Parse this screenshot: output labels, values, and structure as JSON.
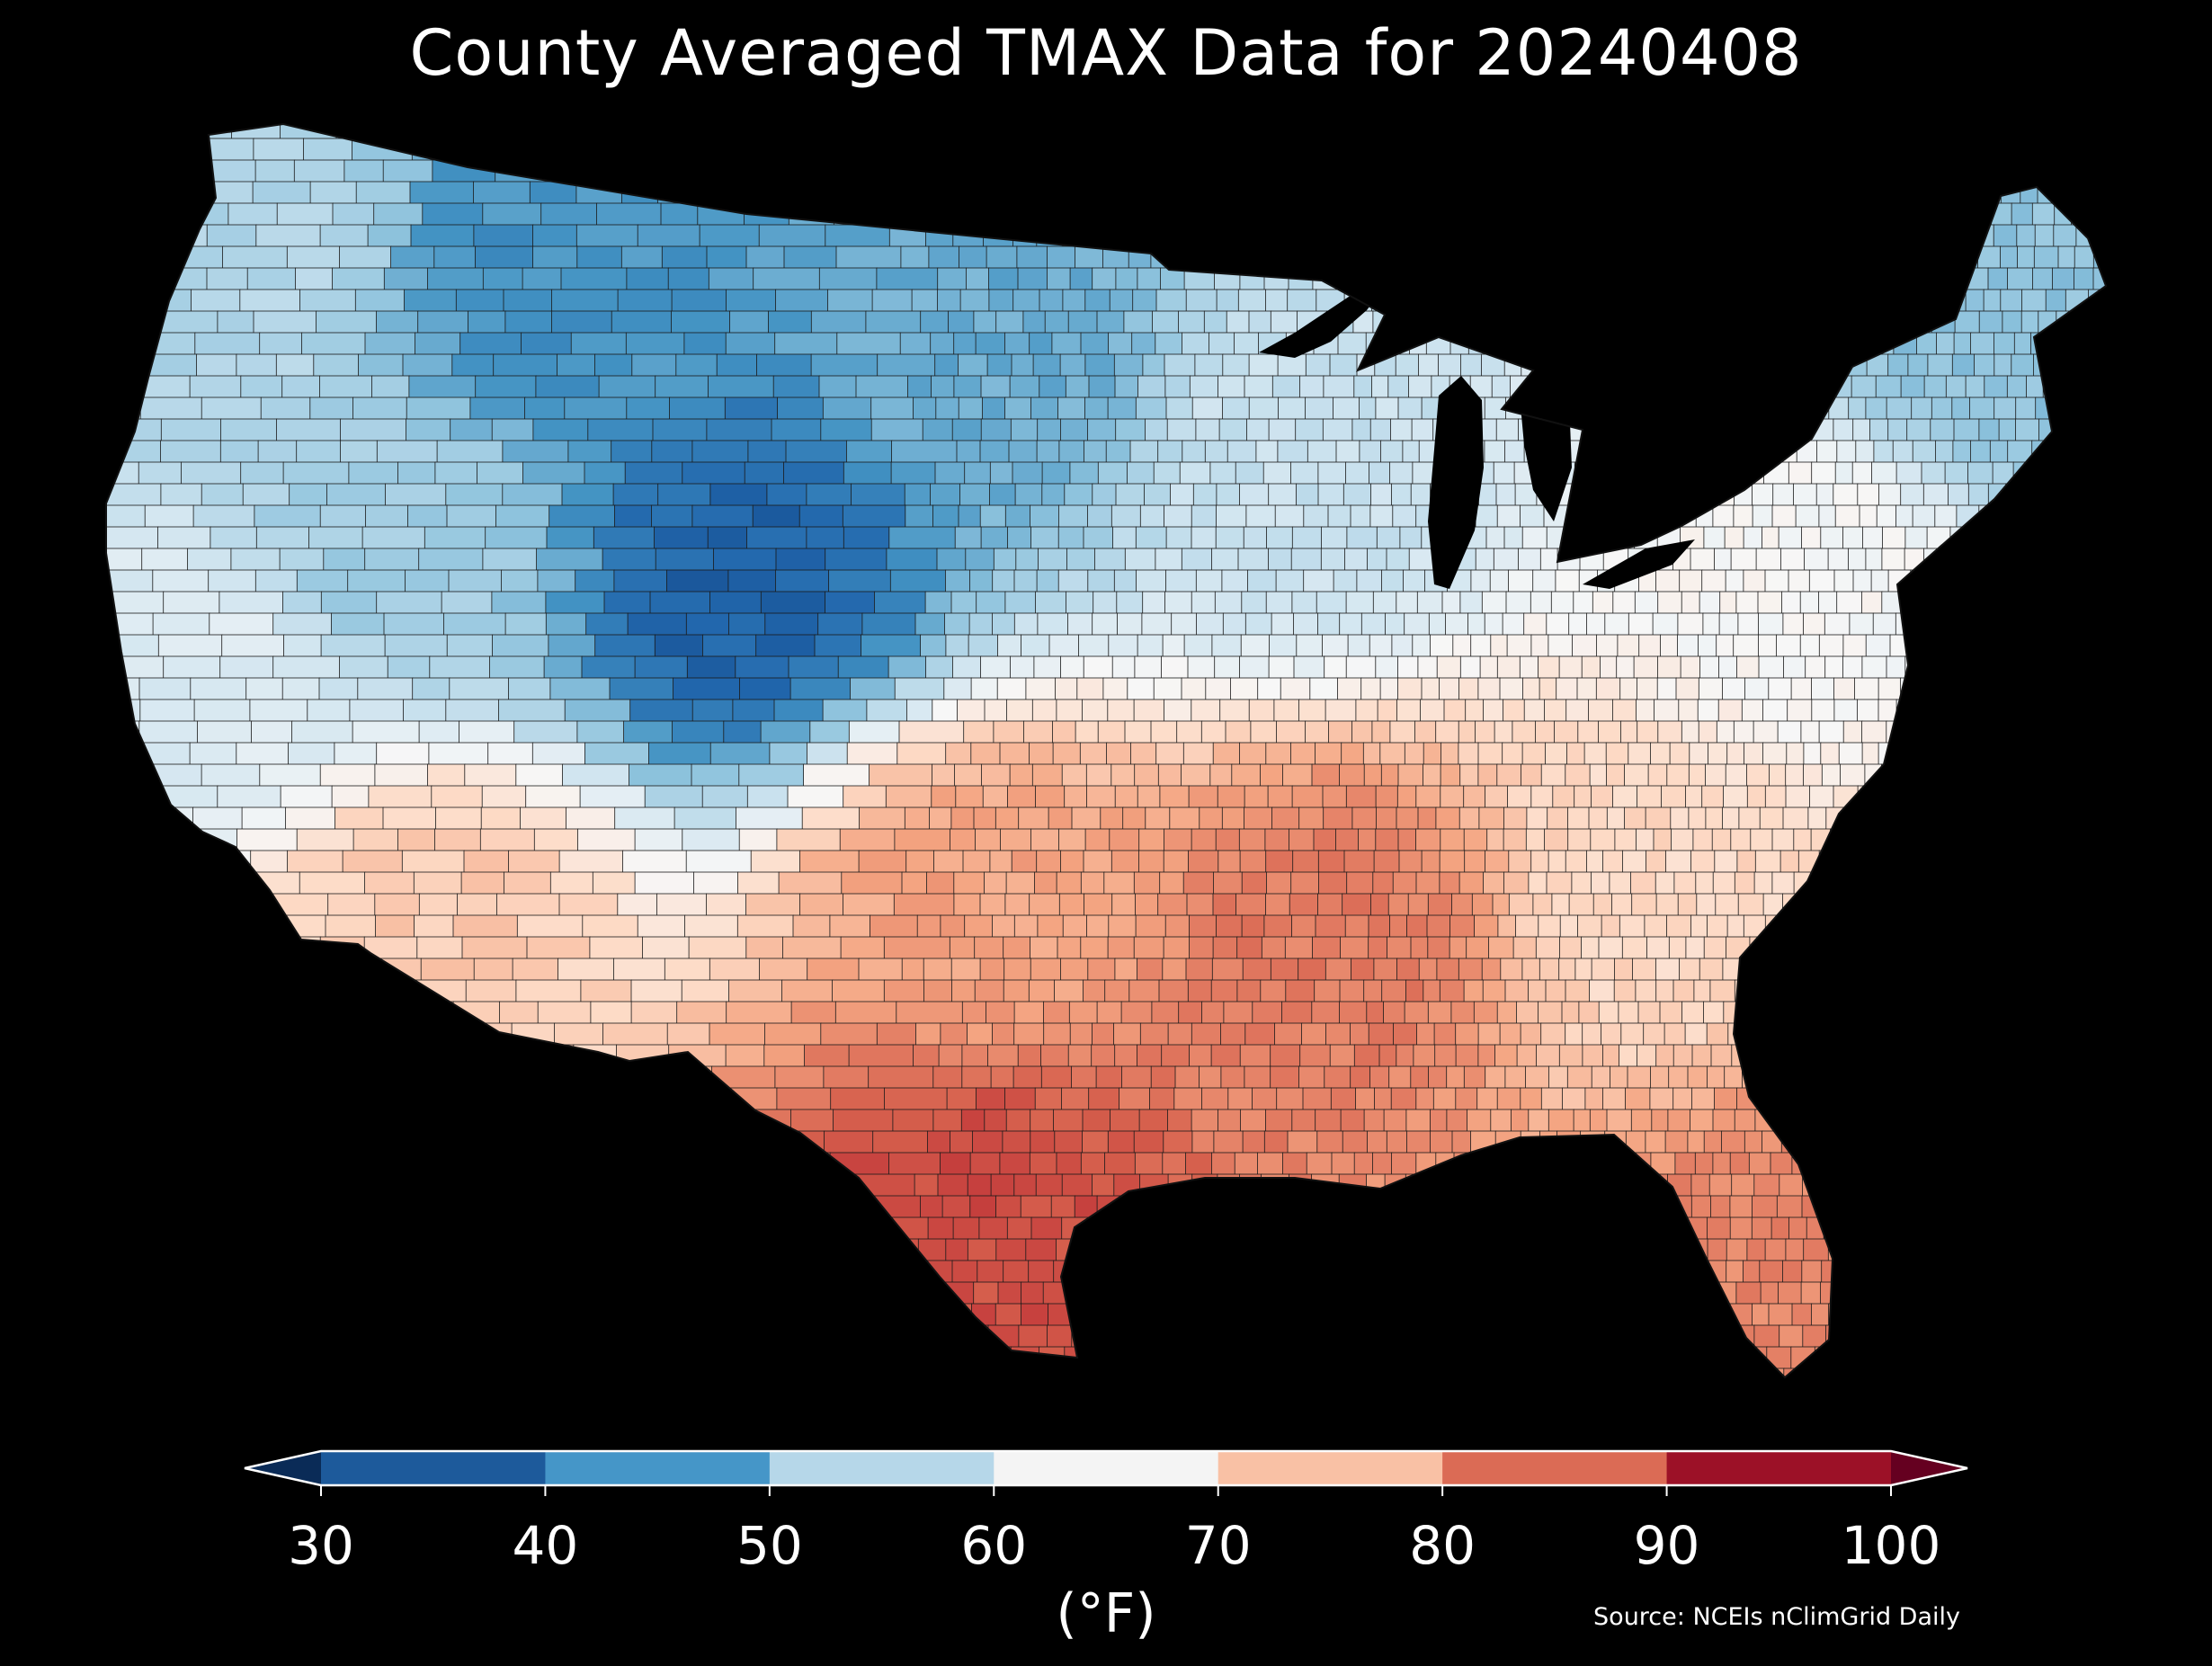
{
  "title": "County Averaged TMAX Data for 20240408",
  "colorbar": {
    "units": "(°F)",
    "ticks": [
      "30",
      "40",
      "50",
      "60",
      "70",
      "80",
      "90",
      "100"
    ],
    "bins": [
      {
        "from": 30,
        "to": 40,
        "color": "#1d5a9b"
      },
      {
        "from": 40,
        "to": 50,
        "color": "#4596c8"
      },
      {
        "from": 50,
        "to": 60,
        "color": "#b6d7e9"
      },
      {
        "from": 60,
        "to": 70,
        "color": "#f4f4f4"
      },
      {
        "from": 70,
        "to": 80,
        "color": "#f9c1a5"
      },
      {
        "from": 80,
        "to": 90,
        "color": "#db6b55"
      },
      {
        "from": 90,
        "to": 100,
        "color": "#9c1127"
      }
    ],
    "under_color": "#0a2b57",
    "over_color": "#650020",
    "outline_color": "#ffffff"
  },
  "source": "Source: NCEIs nClimGrid Daily",
  "map": {
    "background": "#000000",
    "county_line_color": "#1a1a1a",
    "regions": [
      {
        "id": "pacific-northwest",
        "tmax": 52
      },
      {
        "id": "northern-rockies",
        "tmax": 42
      },
      {
        "id": "colorado-rockies",
        "tmax": 36
      },
      {
        "id": "northern-plains",
        "tmax": 45
      },
      {
        "id": "upper-midwest",
        "tmax": 55
      },
      {
        "id": "new-england",
        "tmax": 48
      },
      {
        "id": "mid-atlantic",
        "tmax": 63
      },
      {
        "id": "great-basin",
        "tmax": 50
      },
      {
        "id": "california",
        "tmax": 58
      },
      {
        "id": "desert-southwest",
        "tmax": 72
      },
      {
        "id": "southern-plains",
        "tmax": 77
      },
      {
        "id": "south-texas",
        "tmax": 86
      },
      {
        "id": "lower-mississippi",
        "tmax": 81
      },
      {
        "id": "southeast",
        "tmax": 70
      },
      {
        "id": "florida",
        "tmax": 80
      }
    ]
  }
}
